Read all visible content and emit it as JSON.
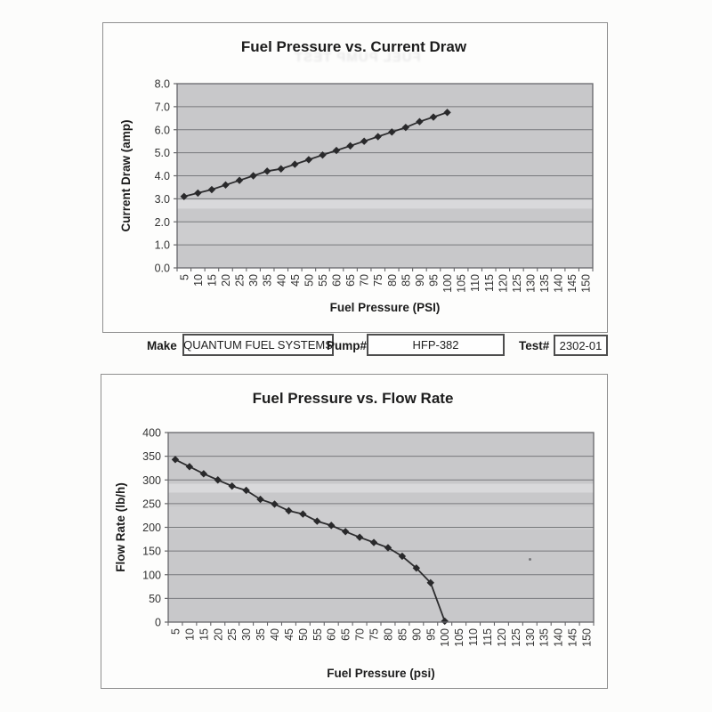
{
  "artifacts": {
    "bleed_through_text": "FUEL PUMP TEST"
  },
  "form": {
    "make_label": "Make",
    "make_value": "QUANTUM FUEL SYSTEMS",
    "pump_label": "Pump#",
    "pump_value": "HFP-382",
    "test_label": "Test#",
    "test_value": "2302-01"
  },
  "colors": {
    "plot_background": "#c8c8ca",
    "gridline": "#77797c",
    "plot_border": "#67676a",
    "data_line": "#2d2d2f",
    "marker": "#29292b",
    "panel_border": "#8f8f8f"
  },
  "chart_data": [
    {
      "id": "pressure_vs_current",
      "type": "line",
      "title": "Fuel Pressure vs. Current Draw",
      "xlabel": "Fuel Pressure (PSI)",
      "ylabel": "Current Draw (amp)",
      "x": [
        5,
        10,
        15,
        20,
        25,
        30,
        35,
        40,
        45,
        50,
        55,
        60,
        65,
        70,
        75,
        80,
        85,
        90,
        95,
        100
      ],
      "values": [
        3.1,
        3.25,
        3.4,
        3.6,
        3.8,
        4.0,
        4.2,
        4.3,
        4.5,
        4.7,
        4.9,
        5.1,
        5.3,
        5.5,
        5.7,
        5.9,
        6.1,
        6.35,
        6.55,
        6.75
      ],
      "x_axis_ticks": [
        5,
        10,
        15,
        20,
        25,
        30,
        35,
        40,
        45,
        50,
        55,
        60,
        65,
        70,
        75,
        80,
        85,
        90,
        95,
        100,
        105,
        110,
        115,
        120,
        125,
        130,
        135,
        140,
        145,
        150
      ],
      "y_axis_ticks": [
        0,
        1,
        2,
        3,
        4,
        5,
        6,
        7,
        8
      ],
      "y_tick_decimals": 1,
      "ylim": [
        0,
        8
      ],
      "marker": "diamond",
      "grid": "horizontal",
      "legend": "none"
    },
    {
      "id": "pressure_vs_flow",
      "type": "line",
      "title": "Fuel Pressure vs. Flow Rate",
      "xlabel": "Fuel Pressure (psi)",
      "ylabel": "Flow Rate (lb/h)",
      "x": [
        5,
        10,
        15,
        20,
        25,
        30,
        35,
        40,
        45,
        50,
        55,
        60,
        65,
        70,
        75,
        80,
        85,
        90,
        95,
        100
      ],
      "values": [
        343,
        328,
        313,
        300,
        287,
        278,
        259,
        249,
        235,
        228,
        213,
        204,
        191,
        179,
        168,
        157,
        139,
        114,
        83,
        2
      ],
      "x_axis_ticks": [
        5,
        10,
        15,
        20,
        25,
        30,
        35,
        40,
        45,
        50,
        55,
        60,
        65,
        70,
        75,
        80,
        85,
        90,
        95,
        100,
        105,
        110,
        115,
        120,
        125,
        130,
        135,
        140,
        145,
        150
      ],
      "y_axis_ticks": [
        0,
        50,
        100,
        150,
        200,
        250,
        300,
        350,
        400
      ],
      "y_tick_decimals": 0,
      "ylim": [
        0,
        400
      ],
      "marker": "diamond",
      "grid": "horizontal",
      "legend": "none"
    }
  ]
}
